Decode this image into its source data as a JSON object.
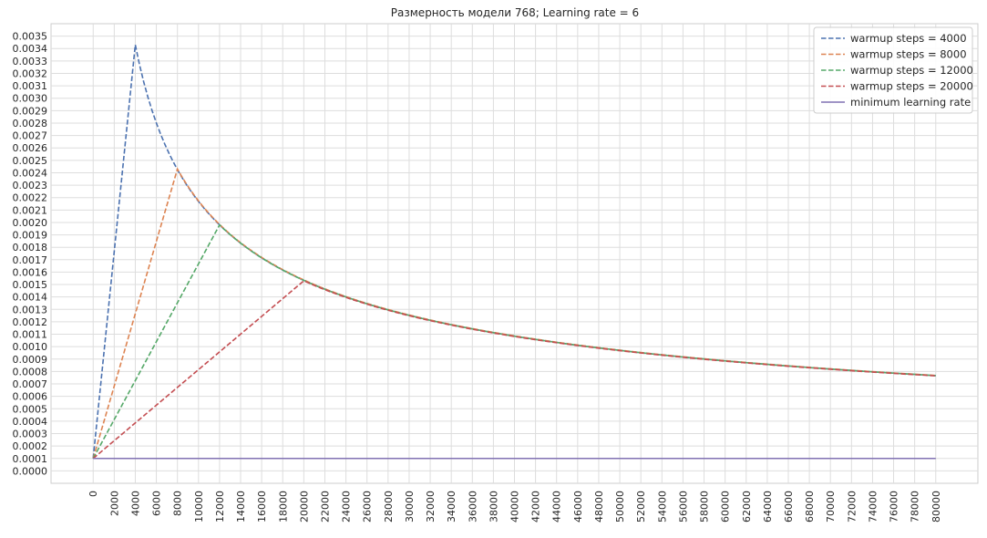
{
  "chart_data": {
    "type": "line",
    "title": "Размерность модели 768; Learning rate = 6",
    "xlabel": "",
    "ylabel": "",
    "xlim": [
      -4000,
      84000
    ],
    "ylim": [
      -0.0001,
      0.0036
    ],
    "x_ticks": [
      0,
      2000,
      4000,
      6000,
      8000,
      10000,
      12000,
      14000,
      16000,
      18000,
      20000,
      22000,
      24000,
      26000,
      28000,
      30000,
      32000,
      34000,
      36000,
      38000,
      40000,
      42000,
      44000,
      46000,
      48000,
      50000,
      52000,
      54000,
      56000,
      58000,
      60000,
      62000,
      64000,
      66000,
      68000,
      70000,
      72000,
      74000,
      76000,
      78000,
      80000
    ],
    "y_ticks": [
      "0.0000",
      "0.0001",
      "0.0002",
      "0.0003",
      "0.0004",
      "0.0005",
      "0.0006",
      "0.0007",
      "0.0008",
      "0.0009",
      "0.0010",
      "0.0011",
      "0.0012",
      "0.0013",
      "0.0014",
      "0.0015",
      "0.0016",
      "0.0017",
      "0.0018",
      "0.0019",
      "0.0020",
      "0.0021",
      "0.0022",
      "0.0023",
      "0.0024",
      "0.0025",
      "0.0026",
      "0.0027",
      "0.0028",
      "0.0029",
      "0.0030",
      "0.0031",
      "0.0032",
      "0.0033",
      "0.0034",
      "0.0035"
    ],
    "grid": true,
    "legend": "top-right",
    "x_max": 80000,
    "min_lr": 0.0001,
    "series": [
      {
        "name": "warmup steps = 4000",
        "warmup": 4000,
        "peak": 0.00343,
        "color": "#4c72b0",
        "style": "dashed"
      },
      {
        "name": "warmup steps = 8000",
        "warmup": 8000,
        "peak": 0.00243,
        "color": "#dd8452",
        "style": "dashed"
      },
      {
        "name": "warmup steps = 12000",
        "warmup": 12000,
        "peak": 0.00198,
        "color": "#55a868",
        "style": "dashed"
      },
      {
        "name": "warmup steps = 20000",
        "warmup": 20000,
        "peak": 0.00153,
        "color": "#c44e52",
        "style": "dashed"
      },
      {
        "name": "minimum learning rate",
        "value": 0.0001,
        "color": "#8172b3",
        "style": "solid"
      }
    ]
  }
}
